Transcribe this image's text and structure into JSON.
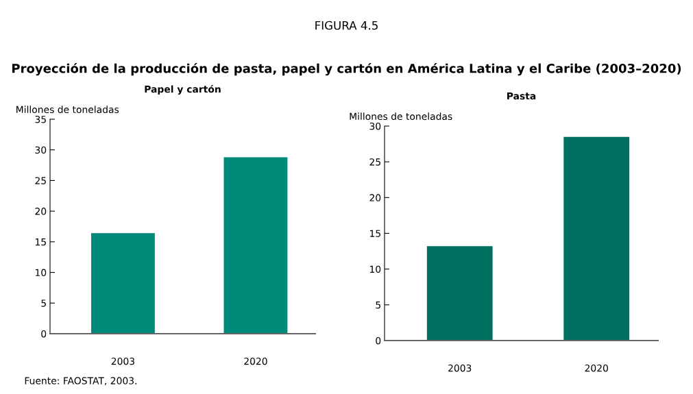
{
  "chart_data": [
    {
      "type": "bar",
      "title": "Papel y cartón",
      "ylabel": "Millones de toneladas",
      "categories": [
        "2003",
        "2020"
      ],
      "values": [
        16.4,
        28.8
      ],
      "color": "#008a7a",
      "ylim": [
        0,
        35
      ],
      "yticks": [
        0,
        5,
        10,
        15,
        20,
        25,
        30,
        35
      ],
      "grid": false,
      "legend": false,
      "annotations": [
        "FIGURA 4.5",
        "Proyección de la producción de pasta, papel y cartón en América Latina y el Caribe (2003–2020)",
        "Fuente: FAOSTAT, 2003."
      ]
    },
    {
      "type": "bar",
      "title": "Pasta",
      "ylabel": "Millones de toneladas",
      "categories": [
        "2003",
        "2020"
      ],
      "values": [
        13.2,
        28.5
      ],
      "color": "#007060",
      "ylim": [
        0,
        30
      ],
      "yticks": [
        0,
        5,
        10,
        15,
        20,
        25,
        30
      ],
      "grid": false,
      "legend": false
    }
  ]
}
